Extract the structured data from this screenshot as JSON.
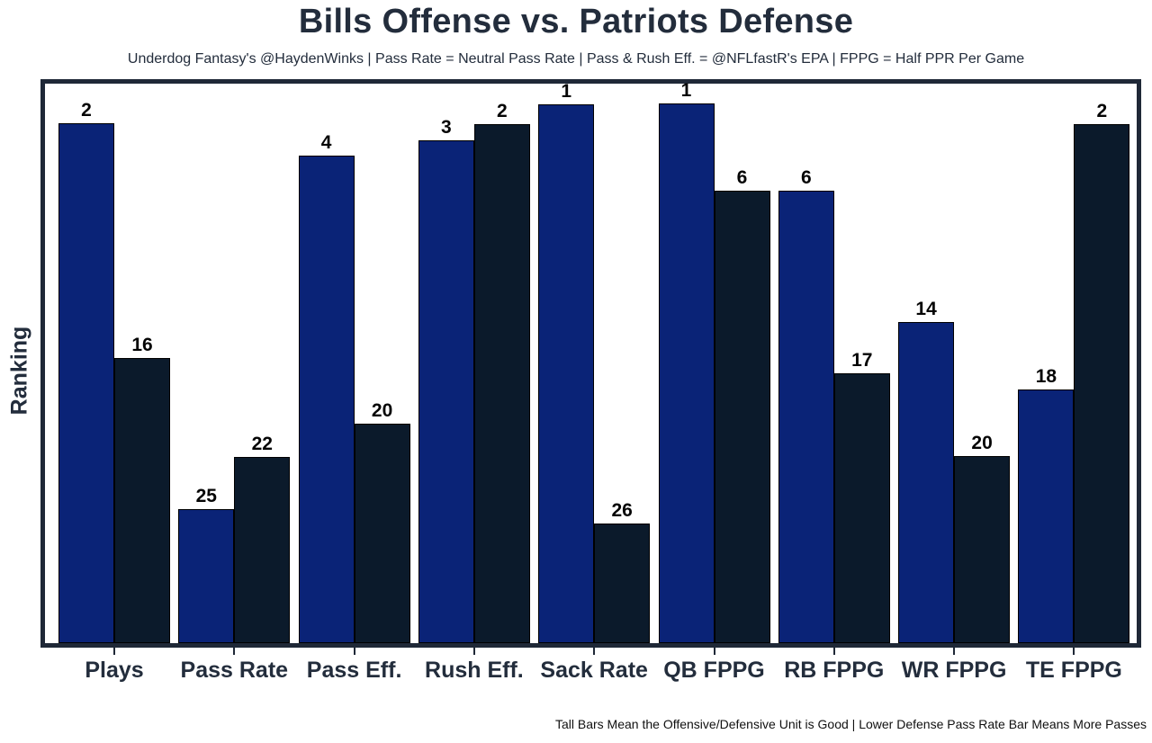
{
  "header": {
    "title": "Bills Offense vs. Patriots Defense",
    "subtitle": "Underdog Fantasy's @HaydenWinks | Pass Rate = Neutral Pass Rate | Pass & Rush Eff. = @NFLfastR's EPA | FPPG = Half PPR Per Game"
  },
  "chart_data": {
    "type": "bar",
    "title": "Bills Offense vs. Patriots Defense",
    "ylabel": "Ranking",
    "categories": [
      "Plays",
      "Pass Rate",
      "Pass Eff.",
      "Rush Eff.",
      "Sack Rate",
      "QB FPPG",
      "RB FPPG",
      "WR FPPG",
      "TE FPPG"
    ],
    "series": [
      {
        "name": "Bills Offense",
        "color": "#0a2377",
        "values": [
          2,
          25,
          4,
          3,
          1,
          1,
          6,
          14,
          18
        ],
        "bar_height_pct": [
          93.0,
          24.0,
          87.2,
          89.9,
          96.3,
          96.5,
          80.8,
          57.4,
          45.4
        ]
      },
      {
        "name": "Patriots Defense",
        "color": "#0b1a2b",
        "values": [
          16,
          22,
          20,
          2,
          26,
          6,
          17,
          20,
          2
        ],
        "bar_height_pct": [
          50.9,
          33.3,
          39.2,
          92.8,
          21.4,
          80.8,
          48.3,
          33.4,
          92.8
        ]
      }
    ],
    "legend": "none",
    "grid": false,
    "bar_labels": "rank shown above each bar; taller bar = better (lower) rank"
  },
  "footer": {
    "note": "Tall Bars Mean the Offensive/Defensive Unit is Good | Lower Defense Pass Rate Bar Means More Passes"
  },
  "colors": {
    "offense_bar": "#0a2377",
    "defense_bar": "#0b1a2b",
    "frame": "#1f2837",
    "text": "#232d3c",
    "bar_outline": "#000000",
    "background": "#ffffff"
  }
}
